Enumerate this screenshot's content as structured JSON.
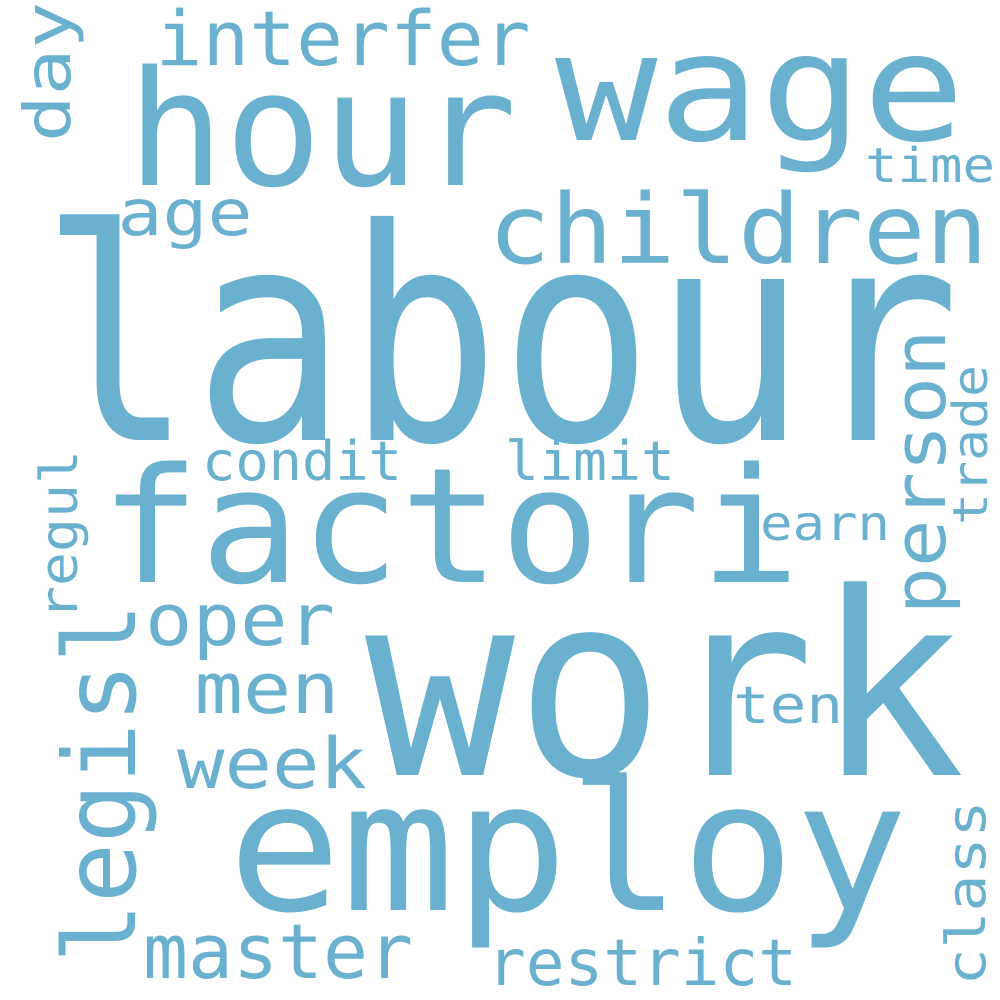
{
  "word_color": "#6ab0cf",
  "background_color": "#ffffff",
  "words": [
    "labour",
    "work",
    "factori",
    "employ",
    "hour",
    "wage",
    "children",
    "interfer",
    "day",
    "age",
    "time",
    "person",
    "trade",
    "condit",
    "limit",
    "earn",
    "regul",
    "legisl",
    "oper",
    "men",
    "ten",
    "week",
    "class",
    "master",
    "restrict"
  ]
}
